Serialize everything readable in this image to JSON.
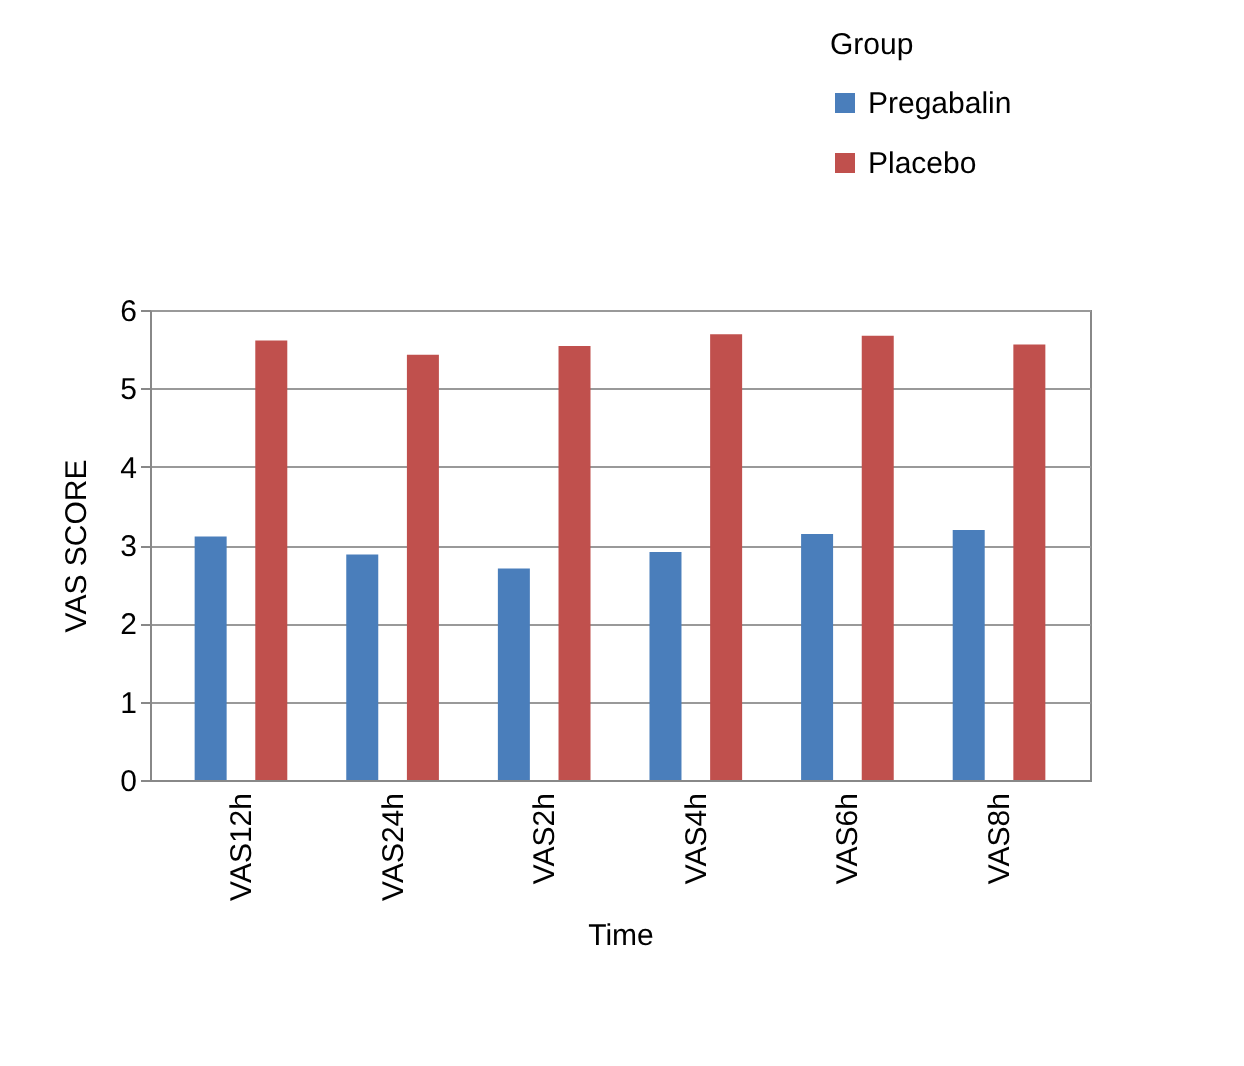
{
  "chart_data": {
    "type": "bar",
    "xlabel": "Time",
    "ylabel": "VAS SCORE",
    "legend_title": "Group",
    "categories": [
      "VAS12h",
      "VAS24h",
      "VAS2h",
      "VAS4h",
      "VAS6h",
      "VAS8h"
    ],
    "series": [
      {
        "name": "Pregabalin",
        "color": "#4a7ebb",
        "values": [
          3.11,
          2.88,
          2.7,
          2.91,
          3.14,
          3.19
        ]
      },
      {
        "name": "Placebo",
        "color": "#c0504d",
        "values": [
          5.61,
          5.43,
          5.54,
          5.69,
          5.67,
          5.56
        ]
      }
    ],
    "ylim": [
      0,
      6
    ],
    "yticks": [
      0,
      1,
      2,
      3,
      4,
      5,
      6
    ],
    "grid": "y",
    "legend": "top right"
  }
}
